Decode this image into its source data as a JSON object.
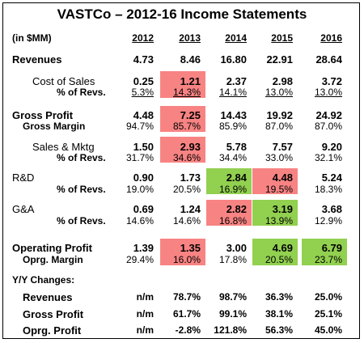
{
  "title": "VASTCo – 2012-16 Income Statements",
  "units": "(in $MM)",
  "years": [
    "2012",
    "2013",
    "2014",
    "2015",
    "2016"
  ],
  "colors": {
    "negative_highlight": "#f88383",
    "positive_highlight": "#92d050"
  },
  "rows": [
    {
      "label": "Revenues",
      "values": [
        "4.73",
        "8.46",
        "16.80",
        "22.91",
        "28.64"
      ]
    },
    {
      "label": "Cost of Sales",
      "values": [
        "0.25",
        "1.21",
        "2.37",
        "2.98",
        "3.72"
      ]
    },
    {
      "label": "% of Revs.",
      "values": [
        "5.3%",
        "14.3%",
        "14.1%",
        "13.0%",
        "13.0%"
      ]
    },
    {
      "label": "Gross Profit",
      "values": [
        "4.48",
        "7.25",
        "14.43",
        "19.92",
        "24.92"
      ]
    },
    {
      "label": "Gross Margin",
      "values": [
        "94.7%",
        "85.7%",
        "85.9%",
        "87.0%",
        "87.0%"
      ]
    },
    {
      "label": "Sales & Mktg",
      "values": [
        "1.50",
        "2.93",
        "5.78",
        "7.57",
        "9.20"
      ]
    },
    {
      "label": "% of Revs.",
      "values": [
        "31.7%",
        "34.6%",
        "34.4%",
        "33.0%",
        "32.1%"
      ]
    },
    {
      "label": "R&D",
      "values": [
        "0.90",
        "1.73",
        "2.84",
        "4.48",
        "5.24"
      ]
    },
    {
      "label": "% of Revs.",
      "values": [
        "19.0%",
        "20.5%",
        "16.9%",
        "19.5%",
        "18.3%"
      ]
    },
    {
      "label": "G&A",
      "values": [
        "0.69",
        "1.24",
        "2.82",
        "3.19",
        "3.68"
      ]
    },
    {
      "label": "% of Revs.",
      "values": [
        "14.6%",
        "14.6%",
        "16.8%",
        "13.9%",
        "12.9%"
      ]
    },
    {
      "label": "Operating Profit",
      "values": [
        "1.39",
        "1.35",
        "3.00",
        "4.69",
        "6.79"
      ]
    },
    {
      "label": "Oprg. Margin",
      "values": [
        "29.4%",
        "16.0%",
        "17.8%",
        "20.5%",
        "23.7%"
      ]
    }
  ],
  "yy": {
    "heading": "Y/Y Changes:",
    "rows": [
      {
        "label": "Revenues",
        "values": [
          "n/m",
          "78.7%",
          "98.7%",
          "36.3%",
          "25.0%"
        ]
      },
      {
        "label": "Gross Profit",
        "values": [
          "n/m",
          "61.7%",
          "99.1%",
          "38.1%",
          "25.1%"
        ]
      },
      {
        "label": "Oprg. Profit",
        "values": [
          "n/m",
          "-2.8%",
          "121.8%",
          "56.3%",
          "45.0%"
        ]
      }
    ]
  }
}
